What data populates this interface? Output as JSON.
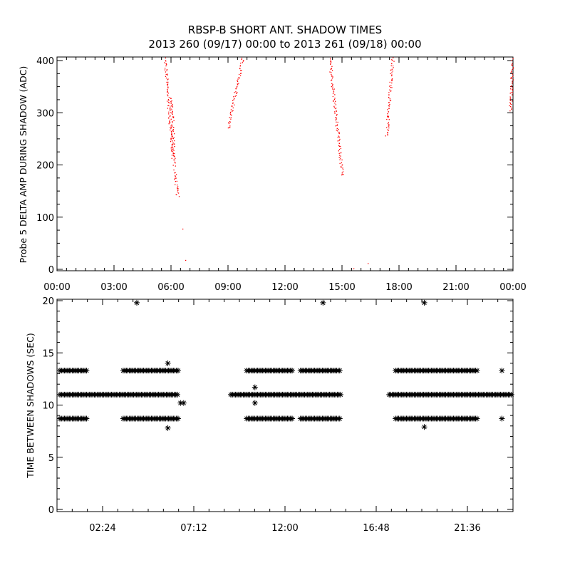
{
  "title_line1": "RBSP-B SHORT ANT. SHADOW TIMES",
  "title_line2": "2013 260 (09/17) 00:00 to 2013 261 (09/18) 00:00",
  "colors": {
    "top_points": "#ff0000",
    "bottom_points": "#000000",
    "axes": "#000000"
  },
  "chart_data": [
    {
      "type": "scatter",
      "title": "RBSP-B SHORT ANT. SHADOW TIMES",
      "subtitle": "2013 260 (09/17) 00:00 to 2013 261 (09/18) 00:00",
      "ylabel": "Probe 5 DELTA AMP DURING SHADOW (ADC)",
      "xlabel": "",
      "xlim": [
        "00:00",
        "24:00"
      ],
      "ylim": [
        0,
        400
      ],
      "x_ticks": [
        "00:00",
        "03:00",
        "06:00",
        "09:00",
        "12:00",
        "15:00",
        "18:00",
        "21:00",
        "00:00"
      ],
      "y_ticks": [
        "0",
        "100",
        "200",
        "300",
        "400"
      ],
      "grid": false,
      "marker": "dot",
      "color": "#ff0000",
      "tracks": [
        {
          "from": [
            "05:40",
            405
          ],
          "to": [
            "06:05",
            215
          ],
          "note": ""
        },
        {
          "from": [
            "06:00",
            330
          ],
          "to": [
            "06:10",
            200
          ]
        },
        {
          "from": [
            "06:10",
            190
          ],
          "to": [
            "06:20",
            140
          ]
        },
        {
          "from": [
            "09:00",
            270
          ],
          "to": [
            "09:45",
            405
          ]
        },
        {
          "from": [
            "14:20",
            405
          ],
          "to": [
            "15:00",
            180
          ]
        },
        {
          "from": [
            "17:20",
            255
          ],
          "to": [
            "17:40",
            405
          ]
        },
        {
          "from": [
            "23:50",
            305
          ],
          "to": [
            "24:00",
            410
          ]
        }
      ],
      "points": [
        [
          6.6,
          78
        ],
        [
          6.75,
          18
        ],
        [
          16.35,
          12
        ],
        [
          15.6,
          2
        ]
      ]
    },
    {
      "type": "scatter",
      "title": "",
      "ylabel": "TIME BETWEEN SHADOWS (SEC)",
      "xlabel": "",
      "xlim": [
        "00:00",
        "24:00"
      ],
      "ylim": [
        0,
        20
      ],
      "x_ticks": [
        "02:24",
        "07:12",
        "12:00",
        "16:48",
        "21:36"
      ],
      "y_ticks": [
        "0",
        "5",
        "10",
        "15",
        "20"
      ],
      "grid": false,
      "marker": "asterisk",
      "color": "#000000",
      "bands": [
        {
          "y": 13.3,
          "segments": [
            [
              "00:00",
              "01:40"
            ],
            [
              "03:20",
              "06:25"
            ],
            [
              "09:50",
              "12:25"
            ],
            [
              "12:40",
              "14:55"
            ],
            [
              "17:40",
              "22:10"
            ]
          ]
        },
        {
          "y": 11.0,
          "segments": [
            [
              "00:00",
              "06:25"
            ],
            [
              "09:00",
              "15:00"
            ],
            [
              "17:20",
              "24:00"
            ]
          ]
        },
        {
          "y": 8.7,
          "segments": [
            [
              "00:00",
              "01:40"
            ],
            [
              "03:20",
              "06:25"
            ],
            [
              "09:50",
              "12:25"
            ],
            [
              "12:40",
              "14:55"
            ],
            [
              "17:40",
              "22:10"
            ]
          ]
        }
      ],
      "points": [
        [
          "04:12",
          19.8
        ],
        [
          "14:00",
          19.8
        ],
        [
          "19:20",
          19.8
        ],
        [
          "05:50",
          14.0
        ],
        [
          "10:25",
          11.7
        ],
        [
          "10:25",
          10.2
        ],
        [
          "06:30",
          10.2
        ],
        [
          "06:40",
          10.2
        ],
        [
          "23:25",
          13.3
        ],
        [
          "05:50",
          7.8
        ],
        [
          "19:20",
          7.9
        ],
        [
          "23:25",
          8.7
        ]
      ]
    }
  ]
}
